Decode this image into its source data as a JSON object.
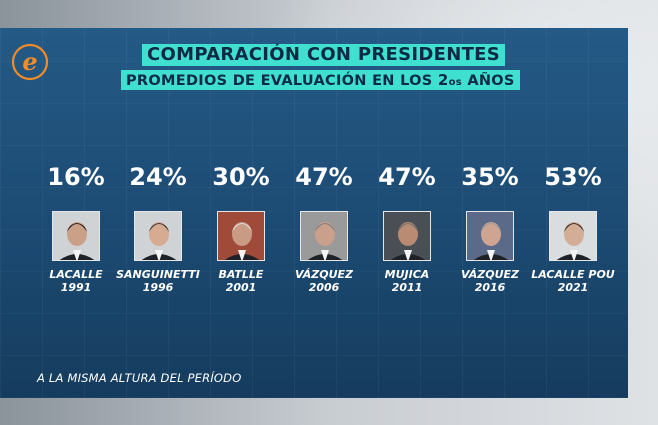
{
  "brand": {
    "logo_letter": "e",
    "logo_color": "#f28c28"
  },
  "colors": {
    "highlight": "#3fe0d0",
    "panel": "#1c4a72",
    "text": "#ffffff"
  },
  "chart_data": {
    "type": "table",
    "title": "COMPARACIÓN CON PRESIDENTES",
    "subtitle_prefix": "PROMEDIOS DE EVALUACIÓN EN LOS ",
    "subtitle_num": "2",
    "subtitle_ord": "os",
    "subtitle_suffix": " AÑOS",
    "footnote": "A LA MISMA ALTURA DEL PERÍODO",
    "categories": [
      "LACALLE",
      "SANGUINETTI",
      "BATLLE",
      "VÁZQUEZ",
      "MUJICA",
      "VÁZQUEZ",
      "LACALLE POU"
    ],
    "years": [
      "1991",
      "1996",
      "2001",
      "2006",
      "2011",
      "2016",
      "2021"
    ],
    "values": [
      16,
      24,
      30,
      47,
      47,
      35,
      53
    ],
    "value_labels": [
      "16%",
      "24%",
      "30%",
      "47%",
      "47%",
      "35%",
      "53%"
    ],
    "unit": "%"
  }
}
